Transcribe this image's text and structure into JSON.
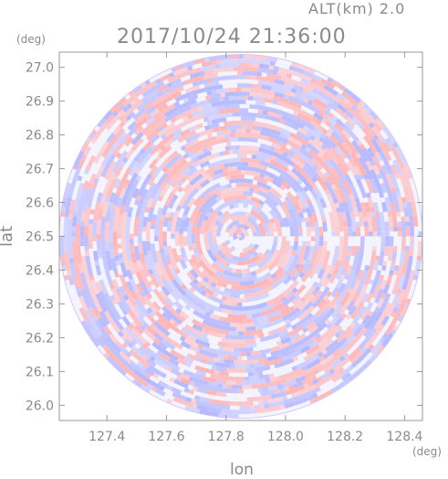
{
  "header": {
    "altitude_label": "ALT(km) 2.0",
    "timestamp": "2017/10/24 21:36:00"
  },
  "axes": {
    "x_label": "lon",
    "y_label": "lat",
    "x_unit": "(deg)",
    "y_unit": "(deg)"
  },
  "chart_data": {
    "type": "heatmap",
    "title": "2017/10/24 21:36:00",
    "subtitle": "ALT(km) 2.0",
    "xlabel": "lon",
    "ylabel": "lat",
    "x_unit": "(deg)",
    "y_unit": "(deg)",
    "xlim": [
      127.24,
      128.46
    ],
    "ylim": [
      25.955,
      27.045
    ],
    "x_ticks": [
      127.4,
      127.6,
      127.8,
      128.0,
      128.2,
      128.4
    ],
    "x_tick_labels": [
      "127.4",
      "127.6",
      "127.8",
      "128.0",
      "128.2",
      "128.4"
    ],
    "y_ticks": [
      26.0,
      26.1,
      26.2,
      26.3,
      26.4,
      26.5,
      26.6,
      26.7,
      26.8,
      26.9,
      27.0
    ],
    "y_tick_labels": [
      "26.0",
      "26.1",
      "26.2",
      "26.3",
      "26.4",
      "26.5",
      "26.6",
      "26.7",
      "26.8",
      "26.9",
      "27.0"
    ],
    "radar_center": {
      "lon": 127.85,
      "lat": 26.5
    },
    "radar_range_lon": 0.61,
    "field_colors": {
      "positive": "#ffb4b4",
      "negative": "#b4b8ff",
      "neutral": "#ffffff"
    },
    "grid": false,
    "legend": "none"
  }
}
